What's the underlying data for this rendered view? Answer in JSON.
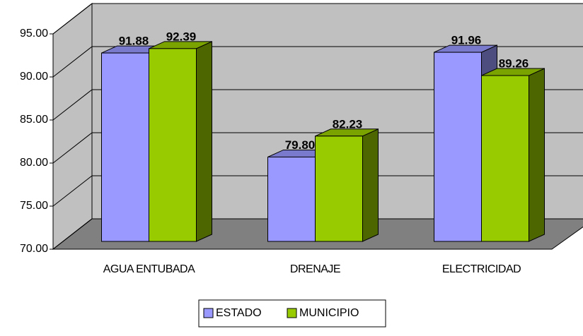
{
  "chart_data": {
    "type": "bar3d",
    "categories": [
      "AGUA ENTUBADA",
      "DRENAJE",
      "ELECTRICIDAD"
    ],
    "series": [
      {
        "name": "ESTADO",
        "color": "#9999ff",
        "values": [
          91.88,
          79.8,
          91.96
        ],
        "value_labels": [
          "91.88",
          "79.80",
          "91.96"
        ]
      },
      {
        "name": "MUNICIPIO",
        "color": "#99cc00",
        "values": [
          92.39,
          82.23,
          89.26
        ],
        "value_labels": [
          "92.39",
          "82.23",
          "89.26"
        ]
      }
    ],
    "ylim": [
      70,
      95
    ],
    "yticks": [
      {
        "value": 70,
        "label": "70.00"
      },
      {
        "value": 75,
        "label": "75.00"
      },
      {
        "value": 80,
        "label": "80.00"
      },
      {
        "value": 85,
        "label": "85.00"
      },
      {
        "value": 90,
        "label": "90.00"
      },
      {
        "value": 95,
        "label": "95.00"
      }
    ],
    "grid": true,
    "legend": "bottom"
  }
}
